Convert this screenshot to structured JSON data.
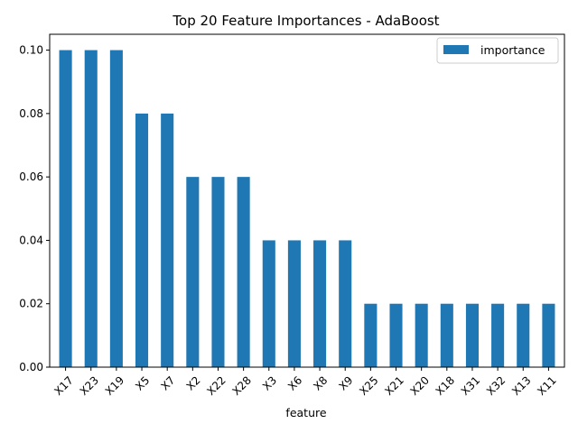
{
  "chart_data": {
    "type": "bar",
    "title": "Top 20 Feature Importances - AdaBoost",
    "xlabel": "feature",
    "ylabel": "",
    "categories": [
      "X17",
      "X23",
      "X19",
      "X5",
      "X7",
      "X2",
      "X22",
      "X28",
      "X3",
      "X6",
      "X8",
      "X9",
      "X25",
      "X21",
      "X20",
      "X18",
      "X31",
      "X32",
      "X13",
      "X11"
    ],
    "series": [
      {
        "name": "importance",
        "color": "#1f77b4",
        "values": [
          0.1,
          0.1,
          0.1,
          0.08,
          0.08,
          0.06,
          0.06,
          0.06,
          0.04,
          0.04,
          0.04,
          0.04,
          0.02,
          0.02,
          0.02,
          0.02,
          0.02,
          0.02,
          0.02,
          0.02
        ]
      }
    ],
    "ylim": [
      0,
      0.105
    ],
    "yticks": [
      "0.00",
      "0.02",
      "0.04",
      "0.06",
      "0.08",
      "0.10"
    ],
    "grid": false,
    "legend_position": "top-right"
  }
}
